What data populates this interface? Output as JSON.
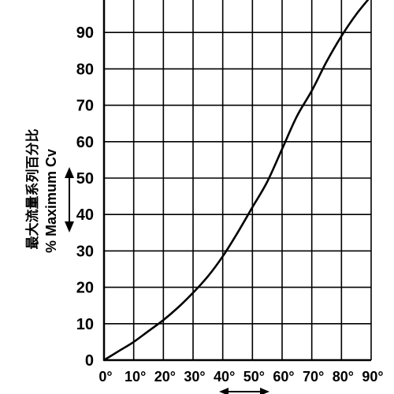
{
  "chart_data": {
    "type": "line",
    "title": "",
    "xlabel": "",
    "ylabel_en": "% Maximum Cv",
    "ylabel_zh": "最大流量系列百分比",
    "x_tick_labels": [
      "0°",
      "10°",
      "20°",
      "30°",
      "40°",
      "50°",
      "60°",
      "70°",
      "80°",
      "90°"
    ],
    "y_tick_labels": [
      "0",
      "10",
      "20",
      "30",
      "40",
      "50",
      "60",
      "70",
      "80",
      "90"
    ],
    "xlim": [
      0,
      90
    ],
    "ylim": [
      0,
      100
    ],
    "grid": true,
    "series": [
      {
        "x": [
          0,
          5,
          10,
          15,
          20,
          25,
          30,
          35,
          40,
          45,
          50,
          55,
          60,
          65,
          70,
          75,
          80,
          85,
          90
        ],
        "y": [
          0,
          2.5,
          5,
          8,
          11,
          14.5,
          18.5,
          23,
          28.5,
          35,
          42,
          49,
          58,
          67,
          74,
          82,
          89,
          95,
          100
        ],
        "color": "#000000"
      }
    ]
  }
}
